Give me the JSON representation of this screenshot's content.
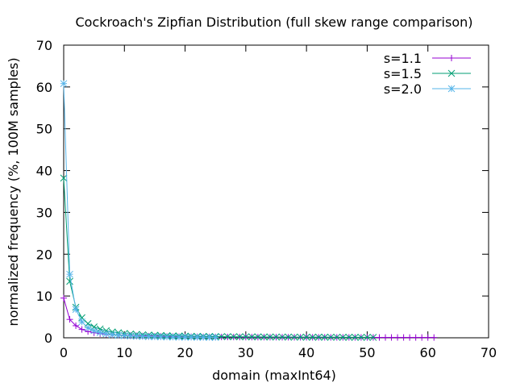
{
  "chart_data": {
    "type": "line",
    "title": "Cockroach's Zipfian Distribution (full skew range comparison)",
    "xlabel": "domain (maxInt64)",
    "ylabel": "normalized frequency (%, 100M samples)",
    "xlim": [
      0,
      70
    ],
    "ylim": [
      0,
      70
    ],
    "xticks": [
      0,
      10,
      20,
      30,
      40,
      50,
      60,
      70
    ],
    "yticks": [
      0,
      10,
      20,
      30,
      40,
      50,
      60,
      70
    ],
    "grid": false,
    "legend_position": "top-right",
    "series": [
      {
        "name": "s=1.1",
        "color": "#9400d3",
        "marker": "plus",
        "x": [
          0,
          1,
          2,
          3,
          4,
          5,
          6,
          7,
          8,
          9,
          10,
          11,
          12,
          13,
          14,
          15,
          16,
          17,
          18,
          19,
          20,
          21,
          22,
          23,
          24,
          25,
          26,
          27,
          28,
          29,
          30,
          31,
          32,
          33,
          34,
          35,
          36,
          37,
          38,
          39,
          40,
          41,
          42,
          43,
          44,
          45,
          46,
          47,
          48,
          49,
          50,
          51,
          52,
          53,
          54,
          55,
          56,
          57,
          58,
          59,
          60,
          61
        ],
        "y": [
          9.5,
          4.4,
          2.9,
          2.0,
          1.5,
          1.2,
          1.0,
          0.85,
          0.75,
          0.65,
          0.57,
          0.52,
          0.47,
          0.43,
          0.4,
          0.37,
          0.34,
          0.32,
          0.3,
          0.28,
          0.26,
          0.25,
          0.24,
          0.22,
          0.21,
          0.2,
          0.19,
          0.19,
          0.18,
          0.17,
          0.16,
          0.16,
          0.15,
          0.15,
          0.14,
          0.14,
          0.13,
          0.13,
          0.12,
          0.12,
          0.12,
          0.11,
          0.11,
          0.11,
          0.1,
          0.1,
          0.1,
          0.1,
          0.09,
          0.09,
          0.09,
          0.09,
          0.08,
          0.08,
          0.08,
          0.08,
          0.08,
          0.07,
          0.07,
          0.07,
          0.07,
          0.07
        ]
      },
      {
        "name": "s=1.5",
        "color": "#009e73",
        "marker": "cross",
        "x": [
          0,
          1,
          2,
          3,
          4,
          5,
          6,
          7,
          8,
          9,
          10,
          11,
          12,
          13,
          14,
          15,
          16,
          17,
          18,
          19,
          20,
          21,
          22,
          23,
          24,
          25,
          26,
          27,
          28,
          29,
          30,
          31,
          32,
          33,
          34,
          35,
          36,
          37,
          38,
          39,
          40,
          41,
          42,
          43,
          44,
          45,
          46,
          47,
          48,
          49,
          50,
          51
        ],
        "y": [
          38.2,
          13.5,
          7.3,
          4.8,
          3.4,
          2.6,
          2.1,
          1.7,
          1.4,
          1.2,
          1.05,
          0.92,
          0.82,
          0.73,
          0.66,
          0.6,
          0.55,
          0.5,
          0.46,
          0.43,
          0.4,
          0.37,
          0.35,
          0.33,
          0.31,
          0.29,
          0.28,
          0.26,
          0.25,
          0.24,
          0.23,
          0.22,
          0.21,
          0.2,
          0.19,
          0.18,
          0.18,
          0.17,
          0.16,
          0.16,
          0.15,
          0.15,
          0.14,
          0.14,
          0.13,
          0.13,
          0.12,
          0.12,
          0.12,
          0.11,
          0.11,
          0.11
        ]
      },
      {
        "name": "s=2.0",
        "color": "#56b4e9",
        "marker": "star",
        "x": [
          0,
          1,
          2,
          3,
          4,
          5,
          6,
          7,
          8,
          9,
          10,
          11,
          12,
          13,
          14,
          15,
          16,
          17,
          18,
          19,
          20,
          21,
          22,
          23,
          24,
          25
        ],
        "y": [
          60.8,
          15.2,
          6.8,
          3.8,
          2.4,
          1.7,
          1.25,
          0.95,
          0.75,
          0.6,
          0.5,
          0.42,
          0.36,
          0.31,
          0.27,
          0.24,
          0.21,
          0.19,
          0.17,
          0.15,
          0.14,
          0.13,
          0.12,
          0.11,
          0.1,
          0.09
        ]
      }
    ]
  }
}
